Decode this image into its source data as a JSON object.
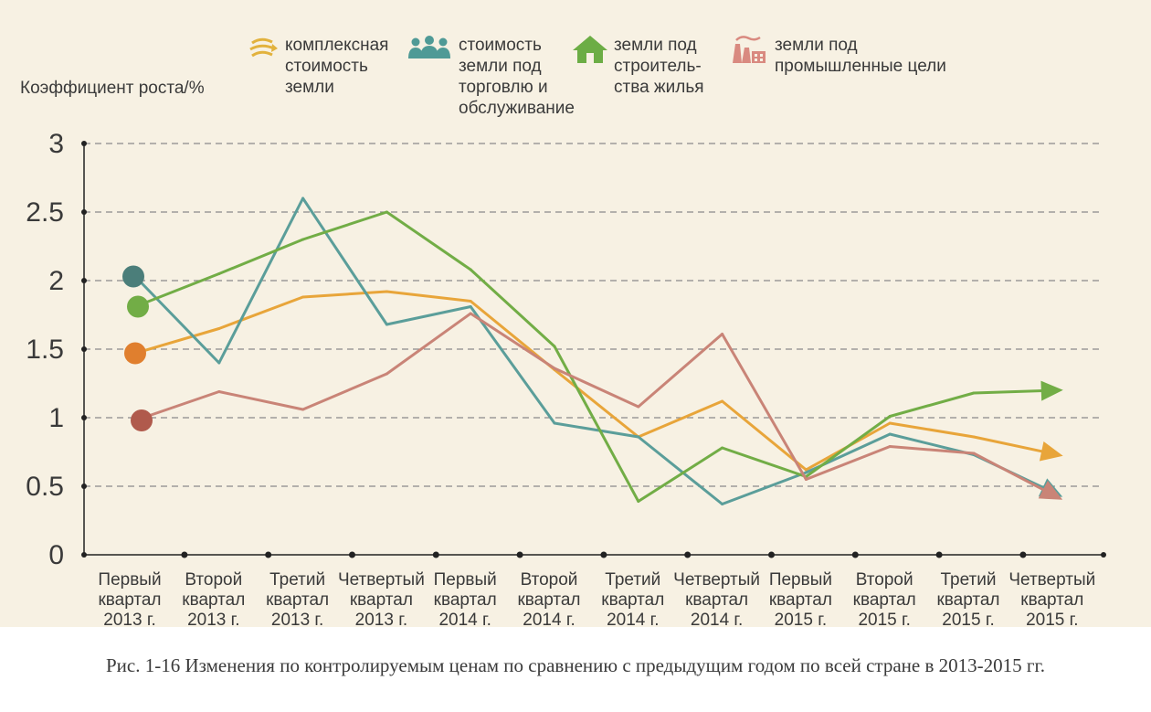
{
  "legend": [
    {
      "label": "комплексная\nстоимость\nземли",
      "icon": "arrows-icon",
      "color": "#e2b23d"
    },
    {
      "label": "стоимость\nземли под\nторговлю и\nобслуживание",
      "icon": "people-icon",
      "color": "#4f9a96"
    },
    {
      "label": "земли под\nстроитель-\nства жилья",
      "icon": "house-icon",
      "color": "#6cad45"
    },
    {
      "label": "земли под\nпромышленные цели",
      "icon": "factory-icon",
      "color": "#d98a80"
    }
  ],
  "caption": "Рис. 1-16 Изменения по контролируемым ценам по сравнению с предыдущим годом по всей стране в 2013-2015 гг.",
  "chart_data": {
    "type": "line",
    "ylabel": "Коэффициент роста/%",
    "ylim": [
      0,
      3
    ],
    "yticks": [
      "0",
      "0.5",
      "1",
      "1.5",
      "2",
      "2.5",
      "3"
    ],
    "grid": true,
    "categories": [
      "Первый\nквартал\n2013 г.",
      "Второй\nквартал\n2013 г.",
      "Третий\nквартал\n2013 г.",
      "Четвертый\nквартал\n2013 г.",
      "Первый\nквартал\n2014 г.",
      "Второй\nквартал\n2014 г.",
      "Третий\nквартал\n2014 г.",
      "Четвертый\nквартал\n2014 г.",
      "Первый\nквартал\n2015 г.",
      "Второй\nквартал\n2015 г.",
      "Третий\nквартал\n2015 г.",
      "Четвертый\nквартал\n2015 г."
    ],
    "series": [
      {
        "name": "комплексная стоимость земли",
        "color": "#e8a53a",
        "start_color": "#e07f2e",
        "values": [
          1.47,
          1.65,
          1.88,
          1.92,
          1.85,
          1.35,
          0.86,
          1.12,
          0.62,
          0.96,
          0.86,
          0.73
        ]
      },
      {
        "name": "стоимость земли под торговлю и обслуживание",
        "color": "#5b9e9a",
        "start_color": "#4b7e7a",
        "values": [
          2.03,
          1.4,
          2.6,
          1.68,
          1.81,
          0.96,
          0.86,
          0.37,
          0.6,
          0.88,
          0.73,
          0.44
        ]
      },
      {
        "name": "земли под строительства жилья",
        "color": "#72ad46",
        "start_color": "#72ad46",
        "values": [
          1.81,
          2.05,
          2.3,
          2.5,
          2.08,
          1.52,
          0.39,
          0.78,
          0.57,
          1.01,
          1.18,
          1.2
        ]
      },
      {
        "name": "земли под промышленные цели",
        "color": "#c98477",
        "start_color": "#b05a4c",
        "values": [
          0.98,
          1.19,
          1.06,
          1.32,
          1.76,
          1.36,
          1.08,
          1.61,
          0.55,
          0.79,
          0.74,
          0.42
        ]
      }
    ]
  }
}
